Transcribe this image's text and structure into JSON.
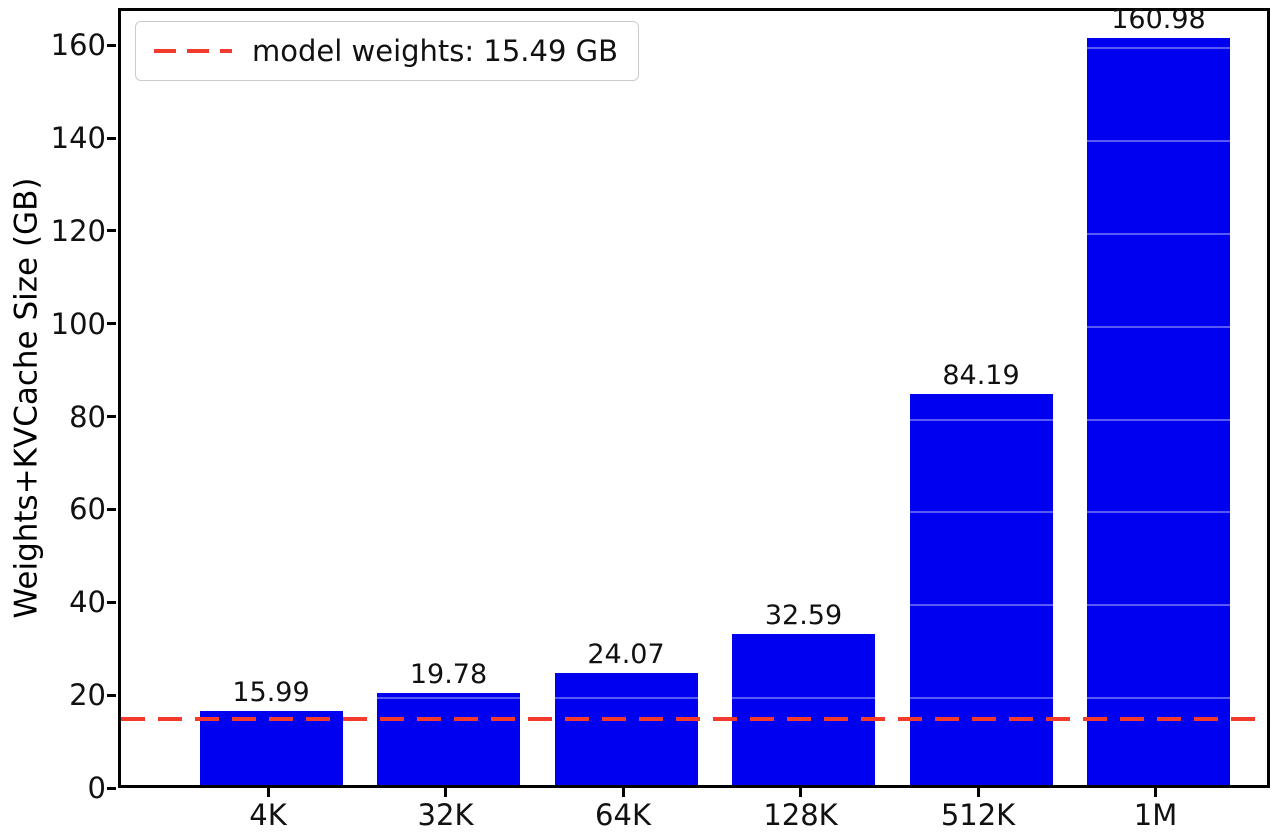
{
  "chart_data": {
    "type": "bar",
    "title": "",
    "categories": [
      "4K",
      "32K",
      "64K",
      "128K",
      "512K",
      "1M"
    ],
    "values": [
      15.99,
      19.78,
      24.07,
      32.59,
      84.19,
      160.98
    ],
    "bar_labels": [
      "15.99",
      "19.78",
      "24.07",
      "32.59",
      "84.19",
      "160.98"
    ],
    "xlabel": "",
    "ylabel": "Weights+KVCache Size (GB)",
    "ylim": [
      0,
      168
    ],
    "yticks": [
      0,
      20,
      40,
      60,
      80,
      100,
      120,
      140,
      160
    ],
    "grid": false,
    "legend_position": "upper left",
    "bar_color": "#0000f0",
    "reference_line": {
      "value": 15.49,
      "label": "model weights: 15.49 GB",
      "color": "#f23b2d",
      "style": "dashed"
    }
  }
}
